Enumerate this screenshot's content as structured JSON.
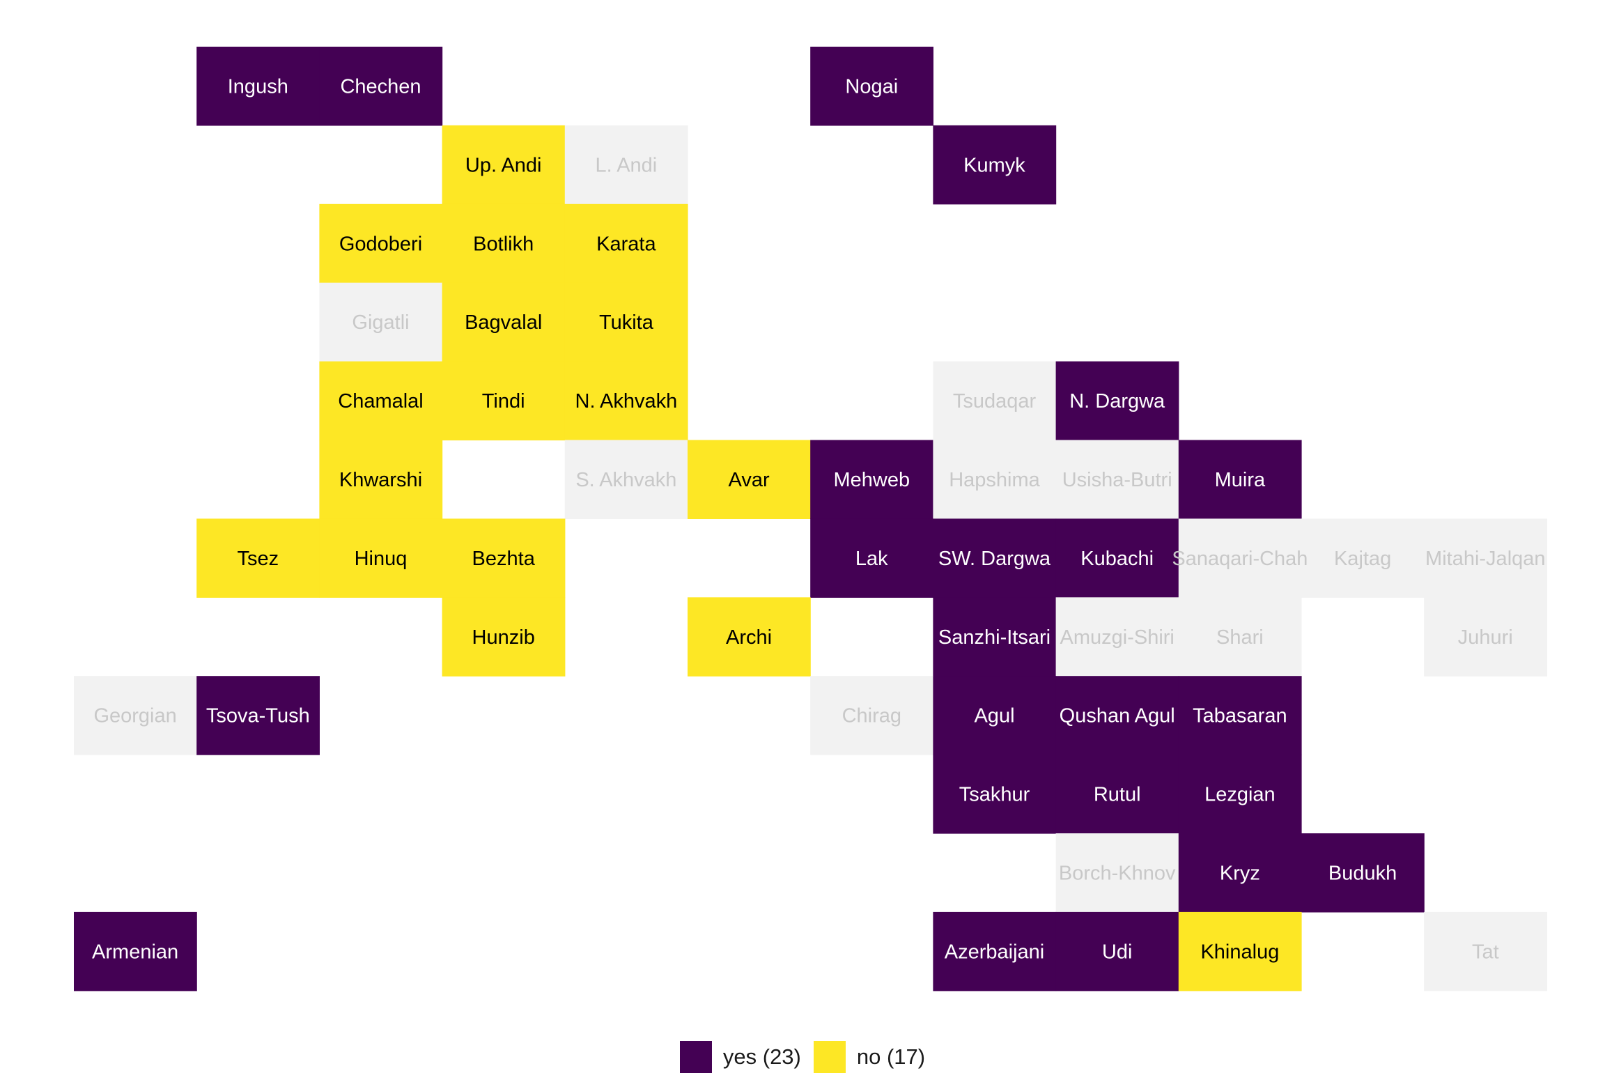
{
  "chart_data": {
    "type": "heatmap",
    "title": "",
    "colors": {
      "yes": "#440154",
      "no": "#FDE725",
      "na": "#F2F2F2",
      "text_on_yes": "#FFFFFF",
      "text_on_no": "#000000",
      "text_on_na": "#C8C8C8"
    },
    "legend": {
      "placement": "bottom",
      "items": [
        {
          "key": "yes",
          "label": "yes (23)"
        },
        {
          "key": "no",
          "label": "no (17)"
        }
      ]
    },
    "cells": [
      {
        "name": "Ingush",
        "row": 1,
        "col": 2,
        "value": "yes"
      },
      {
        "name": "Chechen",
        "row": 1,
        "col": 3,
        "value": "yes"
      },
      {
        "name": "Nogai",
        "row": 1,
        "col": 7,
        "value": "yes"
      },
      {
        "name": "Up. Andi",
        "row": 2,
        "col": 4,
        "value": "no"
      },
      {
        "name": "L. Andi",
        "row": 2,
        "col": 5,
        "value": "na"
      },
      {
        "name": "Kumyk",
        "row": 2,
        "col": 8,
        "value": "yes"
      },
      {
        "name": "Godoberi",
        "row": 3,
        "col": 3,
        "value": "no"
      },
      {
        "name": "Botlikh",
        "row": 3,
        "col": 4,
        "value": "no"
      },
      {
        "name": "Karata",
        "row": 3,
        "col": 5,
        "value": "no"
      },
      {
        "name": "Gigatli",
        "row": 4,
        "col": 3,
        "value": "na"
      },
      {
        "name": "Bagvalal",
        "row": 4,
        "col": 4,
        "value": "no"
      },
      {
        "name": "Tukita",
        "row": 4,
        "col": 5,
        "value": "no"
      },
      {
        "name": "Chamalal",
        "row": 5,
        "col": 3,
        "value": "no"
      },
      {
        "name": "Tindi",
        "row": 5,
        "col": 4,
        "value": "no"
      },
      {
        "name": "N. Akhvakh",
        "row": 5,
        "col": 5,
        "value": "no"
      },
      {
        "name": "Tsudaqar",
        "row": 5,
        "col": 8,
        "value": "na"
      },
      {
        "name": "N. Dargwa",
        "row": 5,
        "col": 9,
        "value": "yes"
      },
      {
        "name": "Khwarshi",
        "row": 6,
        "col": 3,
        "value": "no"
      },
      {
        "name": "S. Akhvakh",
        "row": 6,
        "col": 5,
        "value": "na"
      },
      {
        "name": "Avar",
        "row": 6,
        "col": 6,
        "value": "no"
      },
      {
        "name": "Mehweb",
        "row": 6,
        "col": 7,
        "value": "yes"
      },
      {
        "name": "Hapshima",
        "row": 6,
        "col": 8,
        "value": "na"
      },
      {
        "name": "Usisha-Butri",
        "row": 6,
        "col": 9,
        "value": "na"
      },
      {
        "name": "Muira",
        "row": 6,
        "col": 10,
        "value": "yes"
      },
      {
        "name": "Tsez",
        "row": 7,
        "col": 2,
        "value": "no"
      },
      {
        "name": "Hinuq",
        "row": 7,
        "col": 3,
        "value": "no"
      },
      {
        "name": "Bezhta",
        "row": 7,
        "col": 4,
        "value": "no"
      },
      {
        "name": "Lak",
        "row": 7,
        "col": 7,
        "value": "yes"
      },
      {
        "name": "SW. Dargwa",
        "row": 7,
        "col": 8,
        "value": "yes"
      },
      {
        "name": "Kubachi",
        "row": 7,
        "col": 9,
        "value": "yes"
      },
      {
        "name": "Sanaqari-Chah",
        "row": 7,
        "col": 10,
        "value": "na"
      },
      {
        "name": "Kajtag",
        "row": 7,
        "col": 11,
        "value": "na"
      },
      {
        "name": "Mitahi-Jalqan",
        "row": 7,
        "col": 12,
        "value": "na"
      },
      {
        "name": "Hunzib",
        "row": 8,
        "col": 4,
        "value": "no"
      },
      {
        "name": "Archi",
        "row": 8,
        "col": 6,
        "value": "no"
      },
      {
        "name": "Sanzhi-Itsari",
        "row": 8,
        "col": 8,
        "value": "yes"
      },
      {
        "name": "Amuzgi-Shiri",
        "row": 8,
        "col": 9,
        "value": "na"
      },
      {
        "name": "Shari",
        "row": 8,
        "col": 10,
        "value": "na"
      },
      {
        "name": "Juhuri",
        "row": 8,
        "col": 12,
        "value": "na"
      },
      {
        "name": "Georgian",
        "row": 9,
        "col": 1,
        "value": "na"
      },
      {
        "name": "Tsova-Tush",
        "row": 9,
        "col": 2,
        "value": "yes"
      },
      {
        "name": "Chirag",
        "row": 9,
        "col": 7,
        "value": "na"
      },
      {
        "name": "Agul",
        "row": 9,
        "col": 8,
        "value": "yes"
      },
      {
        "name": "Qushan Agul",
        "row": 9,
        "col": 9,
        "value": "yes"
      },
      {
        "name": "Tabasaran",
        "row": 9,
        "col": 10,
        "value": "yes"
      },
      {
        "name": "Tsakhur",
        "row": 10,
        "col": 8,
        "value": "yes"
      },
      {
        "name": "Rutul",
        "row": 10,
        "col": 9,
        "value": "yes"
      },
      {
        "name": "Lezgian",
        "row": 10,
        "col": 10,
        "value": "yes"
      },
      {
        "name": "Borch-Khnov",
        "row": 11,
        "col": 9,
        "value": "na"
      },
      {
        "name": "Kryz",
        "row": 11,
        "col": 10,
        "value": "yes"
      },
      {
        "name": "Budukh",
        "row": 11,
        "col": 11,
        "value": "yes"
      },
      {
        "name": "Armenian",
        "row": 12,
        "col": 1,
        "value": "yes"
      },
      {
        "name": "Azerbaijani",
        "row": 12,
        "col": 8,
        "value": "yes"
      },
      {
        "name": "Udi",
        "row": 12,
        "col": 9,
        "value": "yes"
      },
      {
        "name": "Khinalug",
        "row": 12,
        "col": 10,
        "value": "no"
      },
      {
        "name": "Tat",
        "row": 12,
        "col": 12,
        "value": "na"
      }
    ]
  }
}
